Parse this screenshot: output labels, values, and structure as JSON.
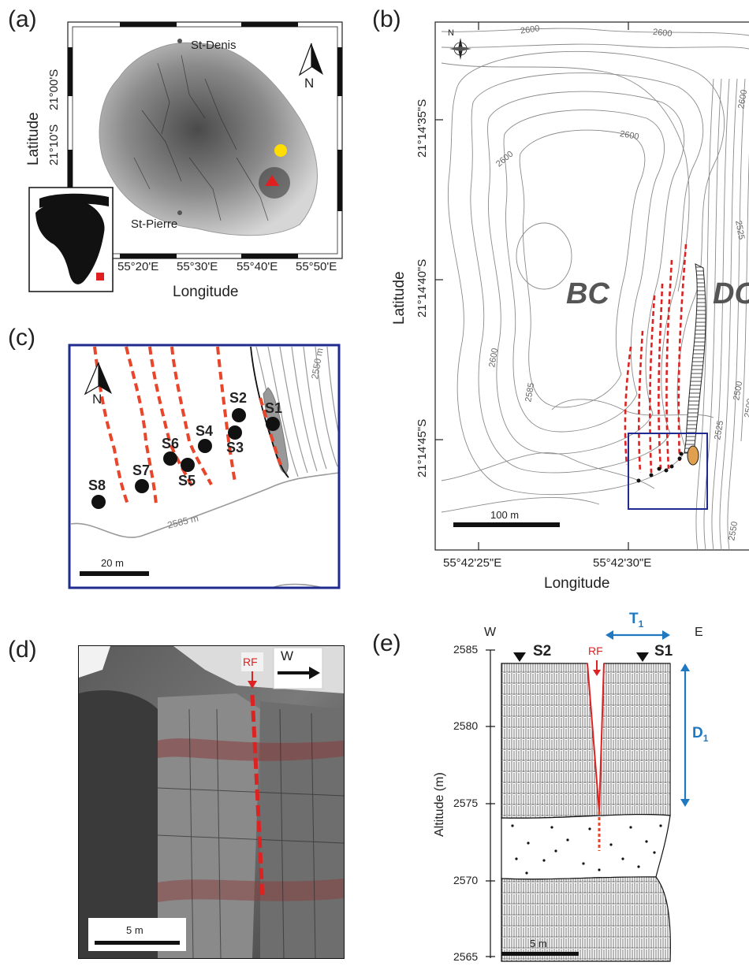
{
  "panels": {
    "a": {
      "label": "(a)",
      "x_axis_title": "Longitude",
      "y_axis_title": "Latitude",
      "x_ticks": [
        "55°20'E",
        "55°30'E",
        "55°40'E",
        "55°50'E"
      ],
      "y_ticks": [
        "21°00'S",
        "21°10'S"
      ],
      "places": {
        "north": "St-Denis",
        "south": "St-Pierre"
      },
      "north_label": "N",
      "colors": {
        "yellow_marker": "#ffdd00",
        "red_marker": "#e02020",
        "inset_marker": "#e02020"
      }
    },
    "b": {
      "label": "(b)",
      "x_axis_title": "Longitude",
      "y_axis_title": "Latitude",
      "x_ticks": [
        "55°42'25\"E",
        "55°42'30\"E"
      ],
      "y_ticks": [
        "21°14'35\"S",
        "21°14'40\"S",
        "21°14'45\"S"
      ],
      "region_labels": {
        "west": "BC",
        "east": "DC"
      },
      "contour_labels": [
        "2600",
        "2600",
        "2600",
        "2600",
        "2600",
        "2585",
        "2525",
        "2525",
        "2500",
        "2500",
        "2550",
        "2600"
      ],
      "compass_label": "N",
      "scale_label": "100 m",
      "colors": {
        "fractures": "#dd2222",
        "inset_box": "#1f2b8f"
      }
    },
    "c": {
      "label": "(c)",
      "north_label": "N",
      "sites": [
        "S1",
        "S2",
        "S3",
        "S4",
        "S5",
        "S6",
        "S7",
        "S8"
      ],
      "contour_labels": [
        "2550 m",
        "2585 m"
      ],
      "scale_label": "20 m",
      "colors": {
        "fractures": "#e8452a",
        "frame": "#1f2b8f"
      }
    },
    "d": {
      "label": "(d)",
      "fracture_label": "RF",
      "direction_label": "W",
      "scale_label": "5 m",
      "colors": {
        "fracture": "#dd2222"
      }
    },
    "e": {
      "label": "(e)",
      "west_label": "W",
      "east_label": "E",
      "y_axis_title": "Altitude (m)",
      "y_ticks": [
        "2585",
        "2580",
        "2575",
        "2570",
        "2565"
      ],
      "stations": {
        "left": "S2",
        "right": "S1"
      },
      "fracture_label": "RF",
      "dimension_labels": {
        "horizontal": "T",
        "horizontal_sub": "1",
        "vertical": "D",
        "vertical_sub": "1"
      },
      "scale_label": "5 m",
      "colors": {
        "fracture": "#dd2222",
        "dimension_arrows": "#1f78c0"
      }
    }
  }
}
